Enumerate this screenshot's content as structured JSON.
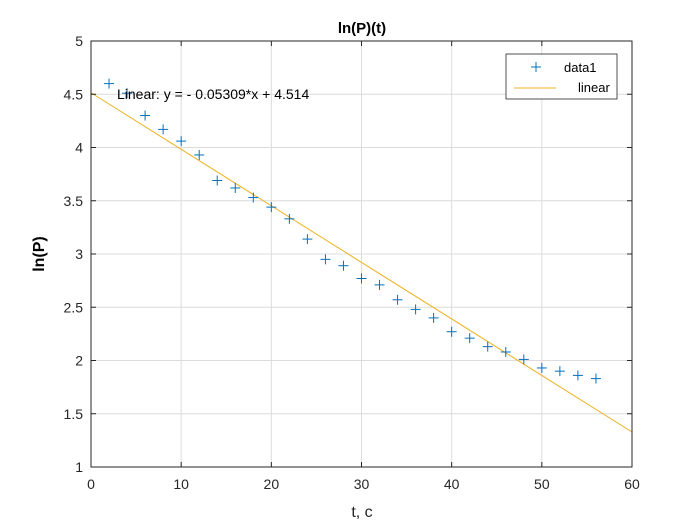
{
  "chart_data": {
    "type": "scatter",
    "title": "ln(P)(t)",
    "xlabel": "t, c",
    "ylabel": "ln(P)",
    "xlim": [
      0,
      60
    ],
    "ylim": [
      1,
      5
    ],
    "xticks": [
      0,
      10,
      20,
      30,
      40,
      50,
      60
    ],
    "yticks": [
      1,
      1.5,
      2,
      2.5,
      3,
      3.5,
      4,
      4.5,
      5
    ],
    "xtick_labels": [
      "0",
      "10",
      "20",
      "30",
      "40",
      "50",
      "60"
    ],
    "ytick_labels": [
      "1",
      "1.5",
      "2",
      "2.5",
      "3",
      "3.5",
      "4",
      "4.5",
      "5"
    ],
    "grid": true,
    "legend_position": "top-right",
    "series": [
      {
        "name": "data1",
        "marker": "plus",
        "color": "#0072BD",
        "x": [
          2,
          4,
          6,
          8,
          10,
          12,
          14,
          16,
          18,
          20,
          22,
          24,
          26,
          28,
          30,
          32,
          34,
          36,
          38,
          40,
          42,
          44,
          46,
          48,
          50,
          52,
          54,
          56
        ],
        "y": [
          4.6,
          4.51,
          4.3,
          4.17,
          4.06,
          3.93,
          3.69,
          3.62,
          3.53,
          3.44,
          3.33,
          3.14,
          2.95,
          2.89,
          2.77,
          2.71,
          2.57,
          2.48,
          2.4,
          2.27,
          2.21,
          2.13,
          2.08,
          2.01,
          1.93,
          1.9,
          1.86,
          1.83
        ]
      },
      {
        "name": "linear",
        "type": "line",
        "color": "#EDB120",
        "slope": -0.05309,
        "intercept": 4.514
      }
    ],
    "annotations": [
      "Linear:  y = - 0.05309*x + 4.514"
    ]
  }
}
